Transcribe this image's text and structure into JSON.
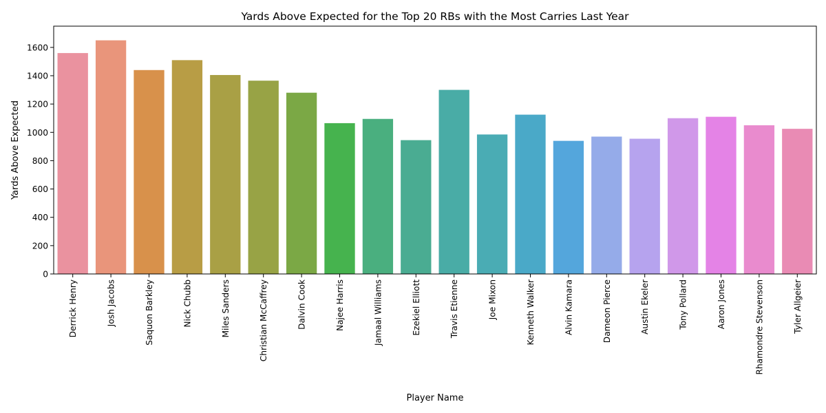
{
  "chart_data": {
    "type": "bar",
    "title": "Yards Above Expected for the Top 20 RBs with the Most Carries Last Year",
    "xlabel": "Player Name",
    "ylabel": "Yards Above Expected",
    "ylim": [
      0,
      1750
    ],
    "yticks": [
      0,
      200,
      400,
      600,
      800,
      1000,
      1200,
      1400,
      1600
    ],
    "grid": false,
    "legend": "none",
    "categories": [
      "Derrick Henry",
      "Josh Jacobs",
      "Saquon Barkley",
      "Nick Chubb",
      "Miles Sanders",
      "Christian McCaffrey",
      "Dalvin Cook",
      "Najee Harris",
      "Jamaal Williams",
      "Ezekiel Elliott",
      "Travis Etienne",
      "Joe Mixon",
      "Kenneth Walker",
      "Alvin Kamara",
      "Dameon Pierce",
      "Austin Ekeler",
      "Tony Pollard",
      "Aaron Jones",
      "Rhamondre Stevenson",
      "Tyler Allgeier"
    ],
    "values": [
      1560,
      1650,
      1440,
      1510,
      1405,
      1365,
      1280,
      1065,
      1095,
      945,
      1300,
      985,
      1125,
      940,
      970,
      955,
      1100,
      1110,
      1050,
      1025
    ],
    "colors": [
      "#ea929f",
      "#e9957b",
      "#d8914b",
      "#b89d45",
      "#a9a045",
      "#98a345",
      "#7ba845",
      "#46b34e",
      "#4aaf7f",
      "#4aac92",
      "#49aca6",
      "#4aacb4",
      "#4aa9c8",
      "#54a6dc",
      "#95abe9",
      "#b6a3ee",
      "#d098e9",
      "#e483e6",
      "#e98bce",
      "#e98bb4"
    ]
  }
}
